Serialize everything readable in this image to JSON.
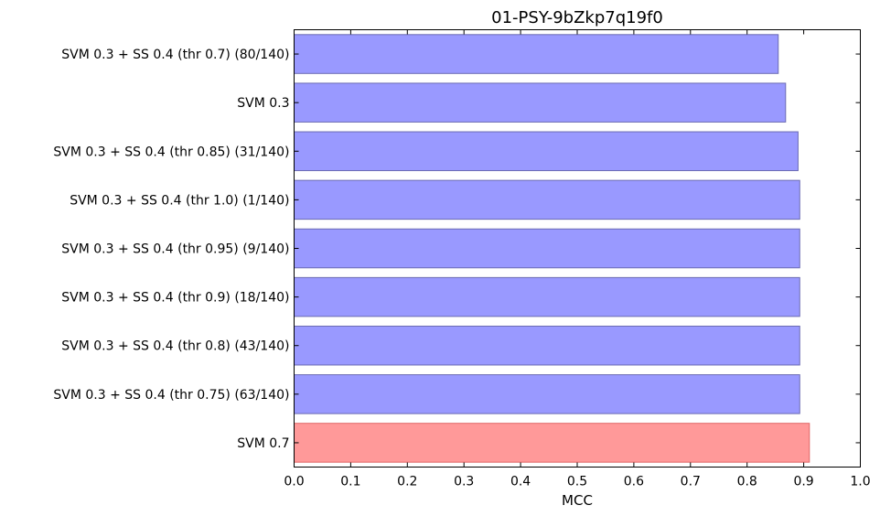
{
  "chart_data": {
    "type": "bar",
    "orientation": "horizontal",
    "title": "01-PSY-9bZkp7q19f0",
    "xlabel": "MCC",
    "ylabel": "",
    "xlim": [
      0.0,
      1.0
    ],
    "xticks": [
      "0.0",
      "0.1",
      "0.2",
      "0.3",
      "0.4",
      "0.5",
      "0.6",
      "0.7",
      "0.8",
      "0.9",
      "1.0"
    ],
    "grid": false,
    "legend": "none",
    "categories": [
      "SVM 0.3 + SS 0.4 (thr 0.7) (80/140)",
      "SVM 0.3",
      "SVM 0.3 + SS 0.4 (thr 0.85) (31/140)",
      "SVM 0.3 + SS 0.4 (thr 1.0) (1/140)",
      "SVM 0.3 + SS 0.4 (thr 0.95) (9/140)",
      "SVM 0.3 + SS 0.4 (thr 0.9) (18/140)",
      "SVM 0.3 + SS 0.4 (thr 0.8) (43/140)",
      "SVM 0.3 + SS 0.4 (thr 0.75) (63/140)",
      "SVM 0.7"
    ],
    "values": [
      0.855,
      0.868,
      0.89,
      0.893,
      0.893,
      0.893,
      0.893,
      0.893,
      0.91
    ],
    "bar_colors": [
      "#9999ff",
      "#9999ff",
      "#9999ff",
      "#9999ff",
      "#9999ff",
      "#9999ff",
      "#9999ff",
      "#9999ff",
      "#ff9999"
    ],
    "colors": {
      "default_bar": "#9999ff",
      "highlight_bar": "#ff9999"
    }
  }
}
